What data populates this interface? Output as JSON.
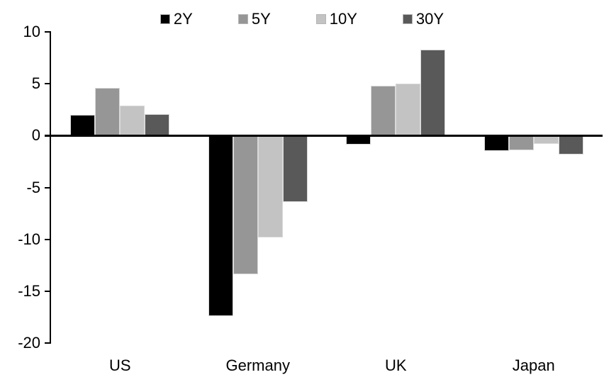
{
  "chart_data": {
    "type": "bar",
    "title": "",
    "categories": [
      "US",
      "Germany",
      "UK",
      "Japan"
    ],
    "series": [
      {
        "name": "2Y",
        "color": "#000000",
        "values": [
          2.0,
          -17.4,
          -0.9,
          -1.5
        ]
      },
      {
        "name": "5Y",
        "color": "#969696",
        "values": [
          4.6,
          -13.4,
          4.8,
          -1.4
        ]
      },
      {
        "name": "10Y",
        "color": "#c3c3c3",
        "values": [
          2.9,
          -9.8,
          5.0,
          -0.8
        ]
      },
      {
        "name": "30Y",
        "color": "#595959",
        "values": [
          2.1,
          -6.4,
          8.3,
          -1.8
        ]
      }
    ],
    "ylim": [
      -20,
      10
    ],
    "yticks": [
      10,
      5,
      0,
      -5,
      -10,
      -15,
      -20
    ],
    "xlabel": "",
    "ylabel": "",
    "grid": false,
    "legend_position": "top",
    "axis_color": "#000000"
  }
}
